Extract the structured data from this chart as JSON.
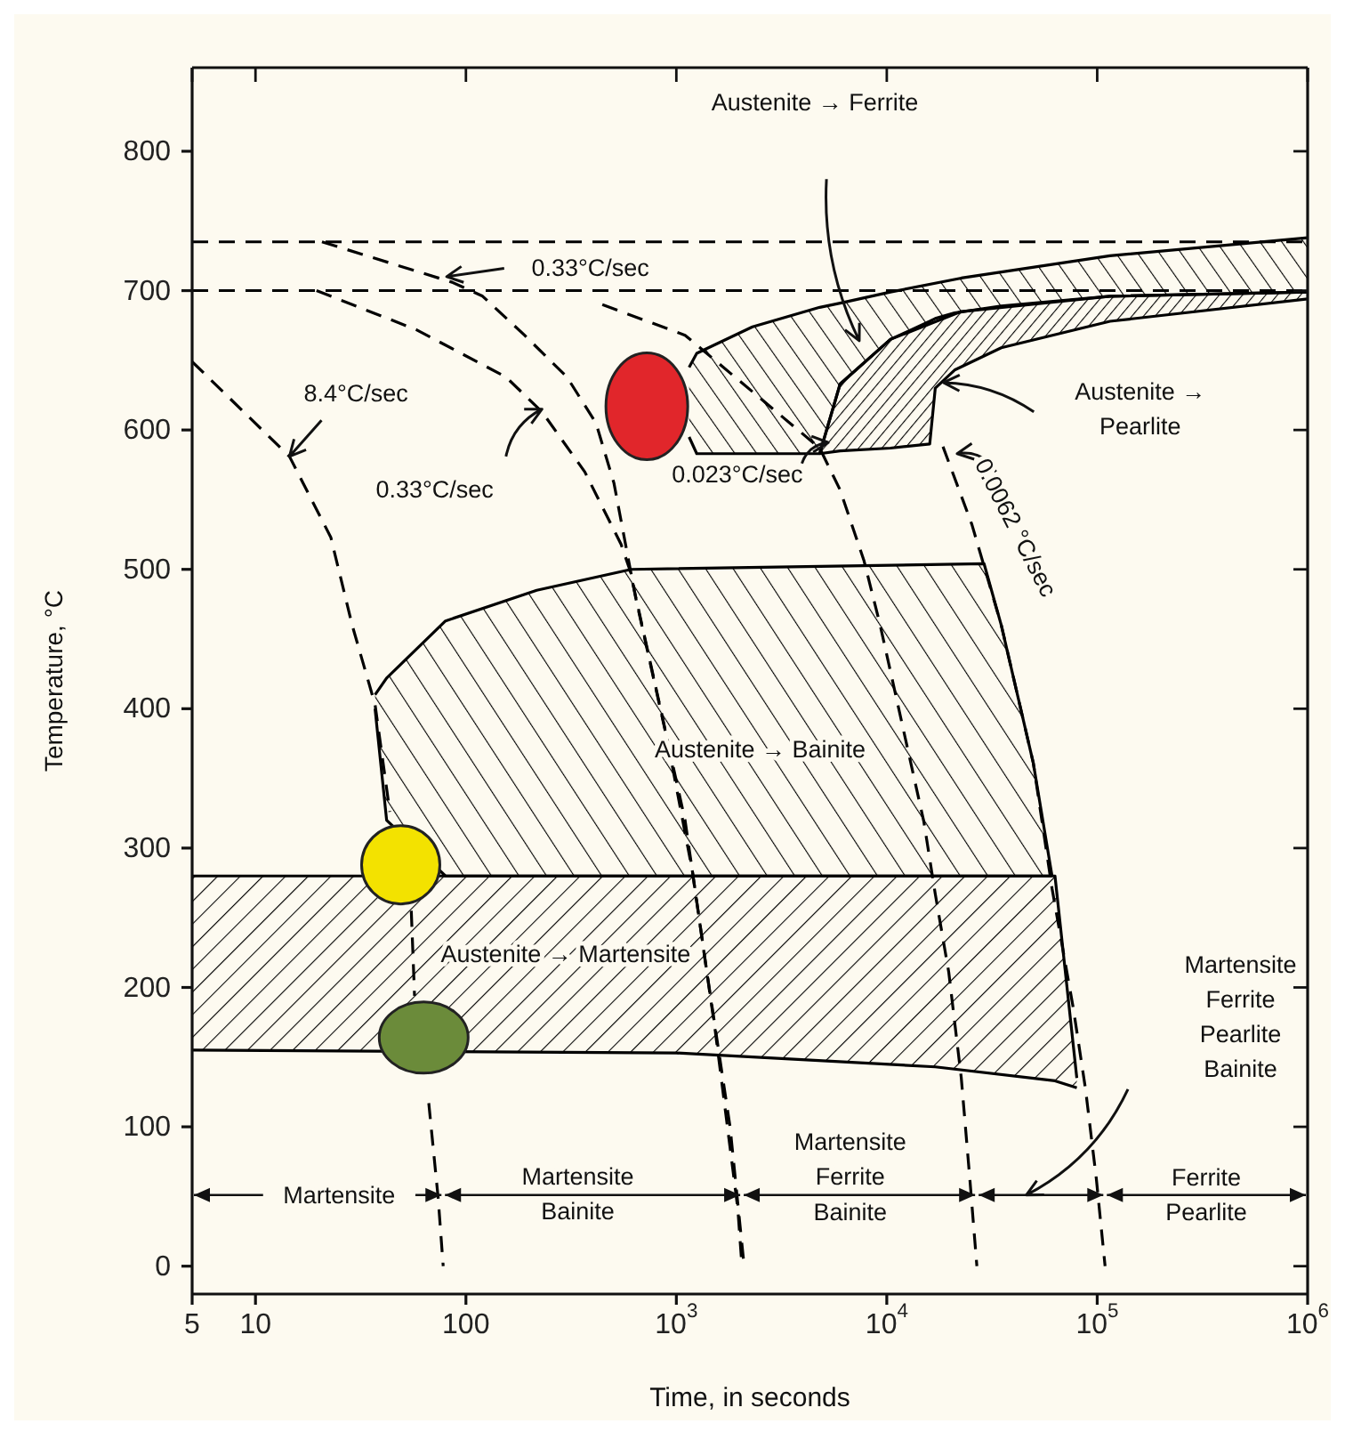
{
  "chart_data": {
    "type": "line",
    "xlabel": "Time, in seconds",
    "ylabel": "Temperature, °C",
    "log": "x",
    "xlim": [
      5,
      1000000
    ],
    "xticks": [
      5,
      10,
      100,
      {
        "value": 1000,
        "label": "10$^{3}$"
      },
      {
        "value": 10000,
        "label": "10$^{4}$"
      },
      {
        "value": 100000,
        "label": "10$^{5}$"
      },
      {
        "value": 1000000,
        "label": "10$^{6}$"
      }
    ],
    "ylim": [
      -20,
      860
    ],
    "yticks": [
      0,
      100,
      200,
      300,
      400,
      500,
      600,
      700,
      800
    ],
    "line_style": "dashed",
    "series": [
      {
        "color": "#000000",
        "line_style": "solid",
        "x": [
          1150,
          1250,
          2300,
          4800,
          6000,
          10400,
          22600,
          115000,
          1000000
        ],
        "values": [
          645,
          655,
          674,
          688,
          691,
          699,
          709,
          725,
          738
        ],
        "lower": [
          595,
          583,
          583,
          583,
          633,
          665,
          685,
          696,
          699
        ],
        "upper": [
          645,
          655,
          674,
          688,
          691,
          699,
          709,
          725,
          738
        ]
      },
      {
        "color": "#000000",
        "line_style": "solid",
        "x": [
          1150,
          1250,
          2300,
          4800,
          6000,
          10400,
          22600,
          115000,
          1000000
        ],
        "values": [
          595,
          583,
          583,
          583,
          633,
          665,
          685,
          696,
          699
        ]
      },
      {
        "color": "#000000",
        "line_style": "solid",
        "x": [
          4800,
          6000,
          10400,
          16000,
          17000,
          21000,
          35000,
          115000,
          1000000
        ],
        "values": [
          583,
          633,
          665,
          678,
          680,
          684,
          689,
          696,
          699
        ],
        "lower": [
          583,
          585,
          587,
          590,
          630,
          643,
          659,
          678,
          694
        ],
        "upper": [
          583,
          633,
          665,
          678,
          680,
          684,
          689,
          696,
          699
        ]
      },
      {
        "color": "#000000",
        "line_style": "solid",
        "x": [
          4800,
          6000,
          10400,
          16000,
          17000,
          21000,
          35000,
          115000,
          1000000
        ],
        "values": [
          583,
          585,
          587,
          590,
          630,
          643,
          659,
          678,
          694
        ]
      },
      {
        "color": "#000000",
        "line_style": "solid",
        "x": [
          37,
          42,
          80,
          217,
          610,
          29000,
          35000,
          49700,
          61000
        ],
        "values": [
          410,
          422,
          463,
          485,
          500,
          504,
          460,
          361,
          280
        ],
        "lower": [
          400,
          320,
          280,
          280,
          280,
          280,
          280,
          280,
          280
        ],
        "upper": [
          410,
          422,
          463,
          485,
          500,
          504,
          460,
          361,
          280
        ]
      },
      {
        "color": "#000000",
        "line_style": "solid",
        "x": [
          37,
          42,
          80,
          217,
          610,
          29000,
          35000,
          49700,
          61000
        ],
        "values": [
          400,
          320,
          280,
          280,
          280,
          280,
          280,
          280,
          280
        ]
      },
      {
        "color": "#000000",
        "line_style": "solid",
        "x": [
          5,
          1000,
          17000,
          63000,
          80000
        ],
        "values": [
          280,
          280,
          280,
          280,
          135
        ],
        "lower": [
          155,
          153,
          143,
          133,
          128
        ],
        "upper": [
          280,
          280,
          280,
          280,
          135
        ]
      },
      {
        "color": "#000000",
        "line_style": "solid",
        "x": [
          5,
          1000,
          17000,
          63000,
          80000
        ],
        "values": [
          155,
          153,
          143,
          133,
          128
        ]
      },
      {
        "color": "#000000",
        "x": [
          5,
          14.5,
          22.8,
          28.8,
          37,
          43.5,
          49,
          55,
          57,
          62,
          66.6,
          73.8,
          78
        ],
        "values": [
          649,
          581,
          523,
          460,
          403,
          326,
          null,
          255,
          194,
          null,
          117,
          49,
          0
        ]
      },
      {
        "color": "#000000",
        "x": [
          19.5,
          58,
          155,
          230,
          367,
          546,
          600,
          900,
          1190,
          1530,
          1960,
          2050
        ],
        "values": [
          700,
          672,
          638,
          613,
          570,
          518,
          500,
          380,
          284,
          169,
          41,
          0
        ]
      },
      {
        "color": "#000000",
        "x": [
          20.7,
          86,
          120,
          190,
          302,
          415,
          505,
          640,
          1100,
          1400,
          1800,
          2100
        ],
        "values": [
          735,
          706,
          696,
          668,
          638,
          605,
          562,
          480,
          320,
          210,
          100,
          0
        ]
      },
      {
        "color": "#000000",
        "x": [
          445,
          1100,
          4800,
          6000,
          7800,
          9300,
          15000,
          17000,
          19700,
          22600,
          24800,
          26800
        ],
        "values": [
          690,
          668,
          587,
          557,
          506,
          460,
          319,
          267,
          211,
          135,
          63,
          0
        ]
      },
      {
        "color": "#000000",
        "x": [
          18500,
          25400,
          35000,
          49700,
          61000,
          77000,
          88000,
          99000,
          109000
        ],
        "values": [
          588,
          532,
          460,
          361,
          271,
          185,
          127,
          63,
          0
        ]
      }
    ],
    "ref_lines": [
      {
        "axis": "y",
        "value": 735,
        "color": "#000000",
        "line_style": "dashed"
      },
      {
        "axis": "y",
        "value": 700,
        "color": "#000000",
        "line_style": "dashed"
      }
    ],
    "annotations": [
      "Austenite → Ferrite",
      "0.33°C/sec",
      "8.4°C/sec",
      "0.33°C/sec",
      "Austenite →\nPearlite",
      "0.023°C/sec",
      "0.0062 °C/sec",
      "Austenite → Bainite",
      "Austenite → Martensite",
      "Martensite\nFerrite\nPearlite\nBainite",
      "Martensite",
      "Martensite\nBainite",
      "Martensite\nFerrite\nBainite",
      "Ferrite\nPearlite"
    ]
  }
}
